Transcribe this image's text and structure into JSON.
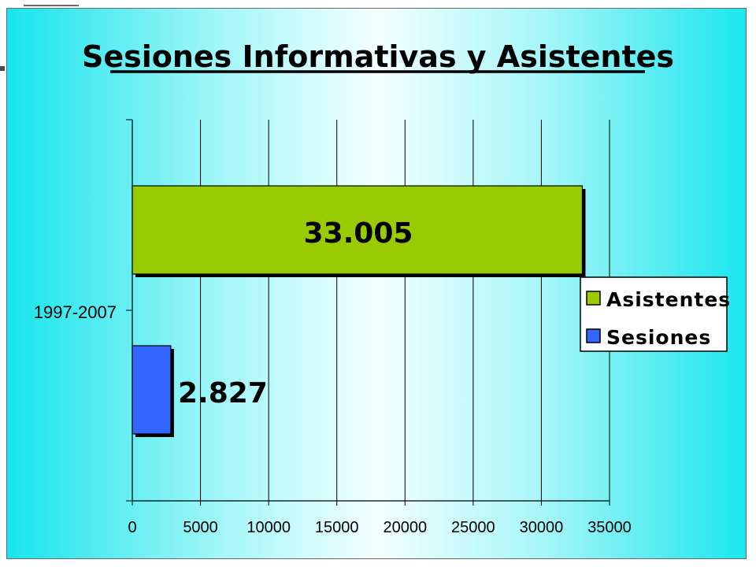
{
  "chart_data": {
    "type": "bar",
    "orientation": "horizontal",
    "title": "Sesiones Informativas y Asistentes",
    "categories": [
      "1997-2007"
    ],
    "series": [
      {
        "name": "Asistentes",
        "values": [
          33005
        ],
        "label": "33.005",
        "color": "#99cc00"
      },
      {
        "name": "Sesiones",
        "values": [
          2827
        ],
        "label": "2.827",
        "color": "#3366ff"
      }
    ],
    "xlim": [
      0,
      35000
    ],
    "x_ticks": [
      "0",
      "5000",
      "10000",
      "15000",
      "20000",
      "25000",
      "30000",
      "35000"
    ],
    "grid": true,
    "legend": "right",
    "background": "cyan gradient"
  }
}
